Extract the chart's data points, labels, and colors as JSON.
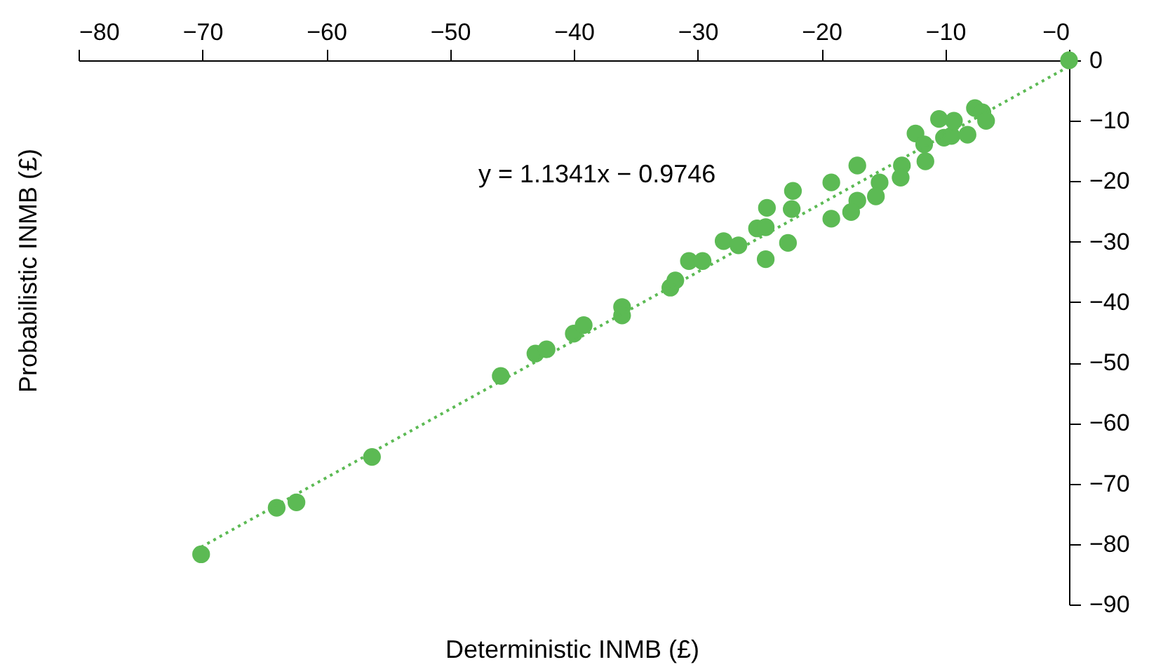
{
  "chart_data": {
    "type": "scatter",
    "xlabel": "Deterministic INMB (£)",
    "ylabel": "Probabilistic INMB (£)",
    "annotations": [
      "y = 1.1341x − 0.9746"
    ],
    "xlim": [
      -80,
      0
    ],
    "xticks": [
      -80,
      -70,
      -60,
      -50,
      -40,
      -30,
      -20,
      -10,
      {
        "value": 0,
        "label": "−0"
      }
    ],
    "ylim": [
      -90,
      0
    ],
    "yticks": [
      -90,
      -80,
      -70,
      -60,
      -50,
      -40,
      -30,
      -20,
      -10,
      0
    ],
    "grid": false,
    "series": [
      {
        "marker": "circle",
        "color": "#5cba54",
        "x": [
          0,
          -70.1,
          -64.0,
          -62.4,
          -56.3,
          -45.9,
          -43.1,
          -42.2,
          -40.0,
          -39.2,
          -36.1,
          -36.1,
          -32.2,
          -31.8,
          -30.7,
          -29.6,
          -27.9,
          -26.7,
          -25.2,
          -24.5,
          -24.4,
          -24.5,
          -22.3,
          -22.4,
          -22.7,
          -19.2,
          -19.2,
          -17.1,
          -17.1,
          -17.6,
          -15.3,
          -15.6,
          -13.5,
          -13.6,
          -12.4,
          -11.7,
          -11.6,
          -10.5,
          -10.1,
          -9.5,
          -9.3,
          -8.2,
          -7.6,
          -7.0,
          -6.7
        ],
        "values": [
          0,
          -81.7,
          -74.0,
          -73.1,
          -65.6,
          -52.2,
          -48.5,
          -47.8,
          -45.2,
          -43.8,
          -40.8,
          -42.2,
          -37.6,
          -36.4,
          -33.2,
          -33.2,
          -29.9,
          -30.6,
          -27.8,
          -27.6,
          -24.4,
          -32.9,
          -21.6,
          -24.6,
          -30.2,
          -20.2,
          -26.2,
          -17.4,
          -23.2,
          -25.1,
          -20.2,
          -22.5,
          -17.4,
          -19.4,
          -12.1,
          -13.9,
          -16.7,
          -9.7,
          -12.8,
          -12.5,
          -10.0,
          -12.3,
          -7.9,
          -8.6,
          -10.0
        ]
      },
      {
        "type": "line",
        "marker": "none",
        "line_style": "dotted",
        "color": "#5cba54",
        "x": [
          -70.1,
          0
        ],
        "values": [
          -80.5,
          -1.0
        ]
      }
    ]
  }
}
